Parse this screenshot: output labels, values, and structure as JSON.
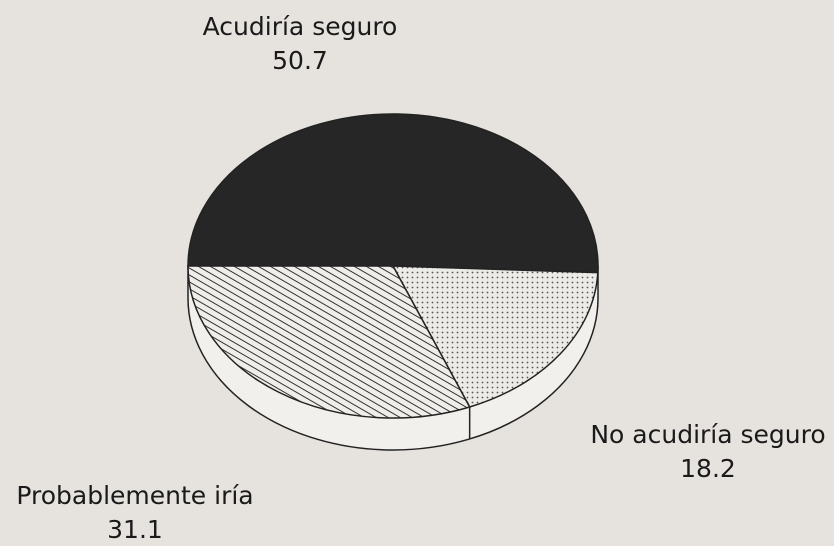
{
  "chart_data": {
    "type": "pie",
    "categories": [
      "Acudiría seguro",
      "No acudiría seguro",
      "Probablemente iría"
    ],
    "values": [
      50.7,
      18.2,
      31.1
    ],
    "colors": [
      "#262626",
      "#d9d6d0",
      "#f0eeea"
    ],
    "patterns": [
      "solid",
      "dots",
      "hatch"
    ]
  }
}
